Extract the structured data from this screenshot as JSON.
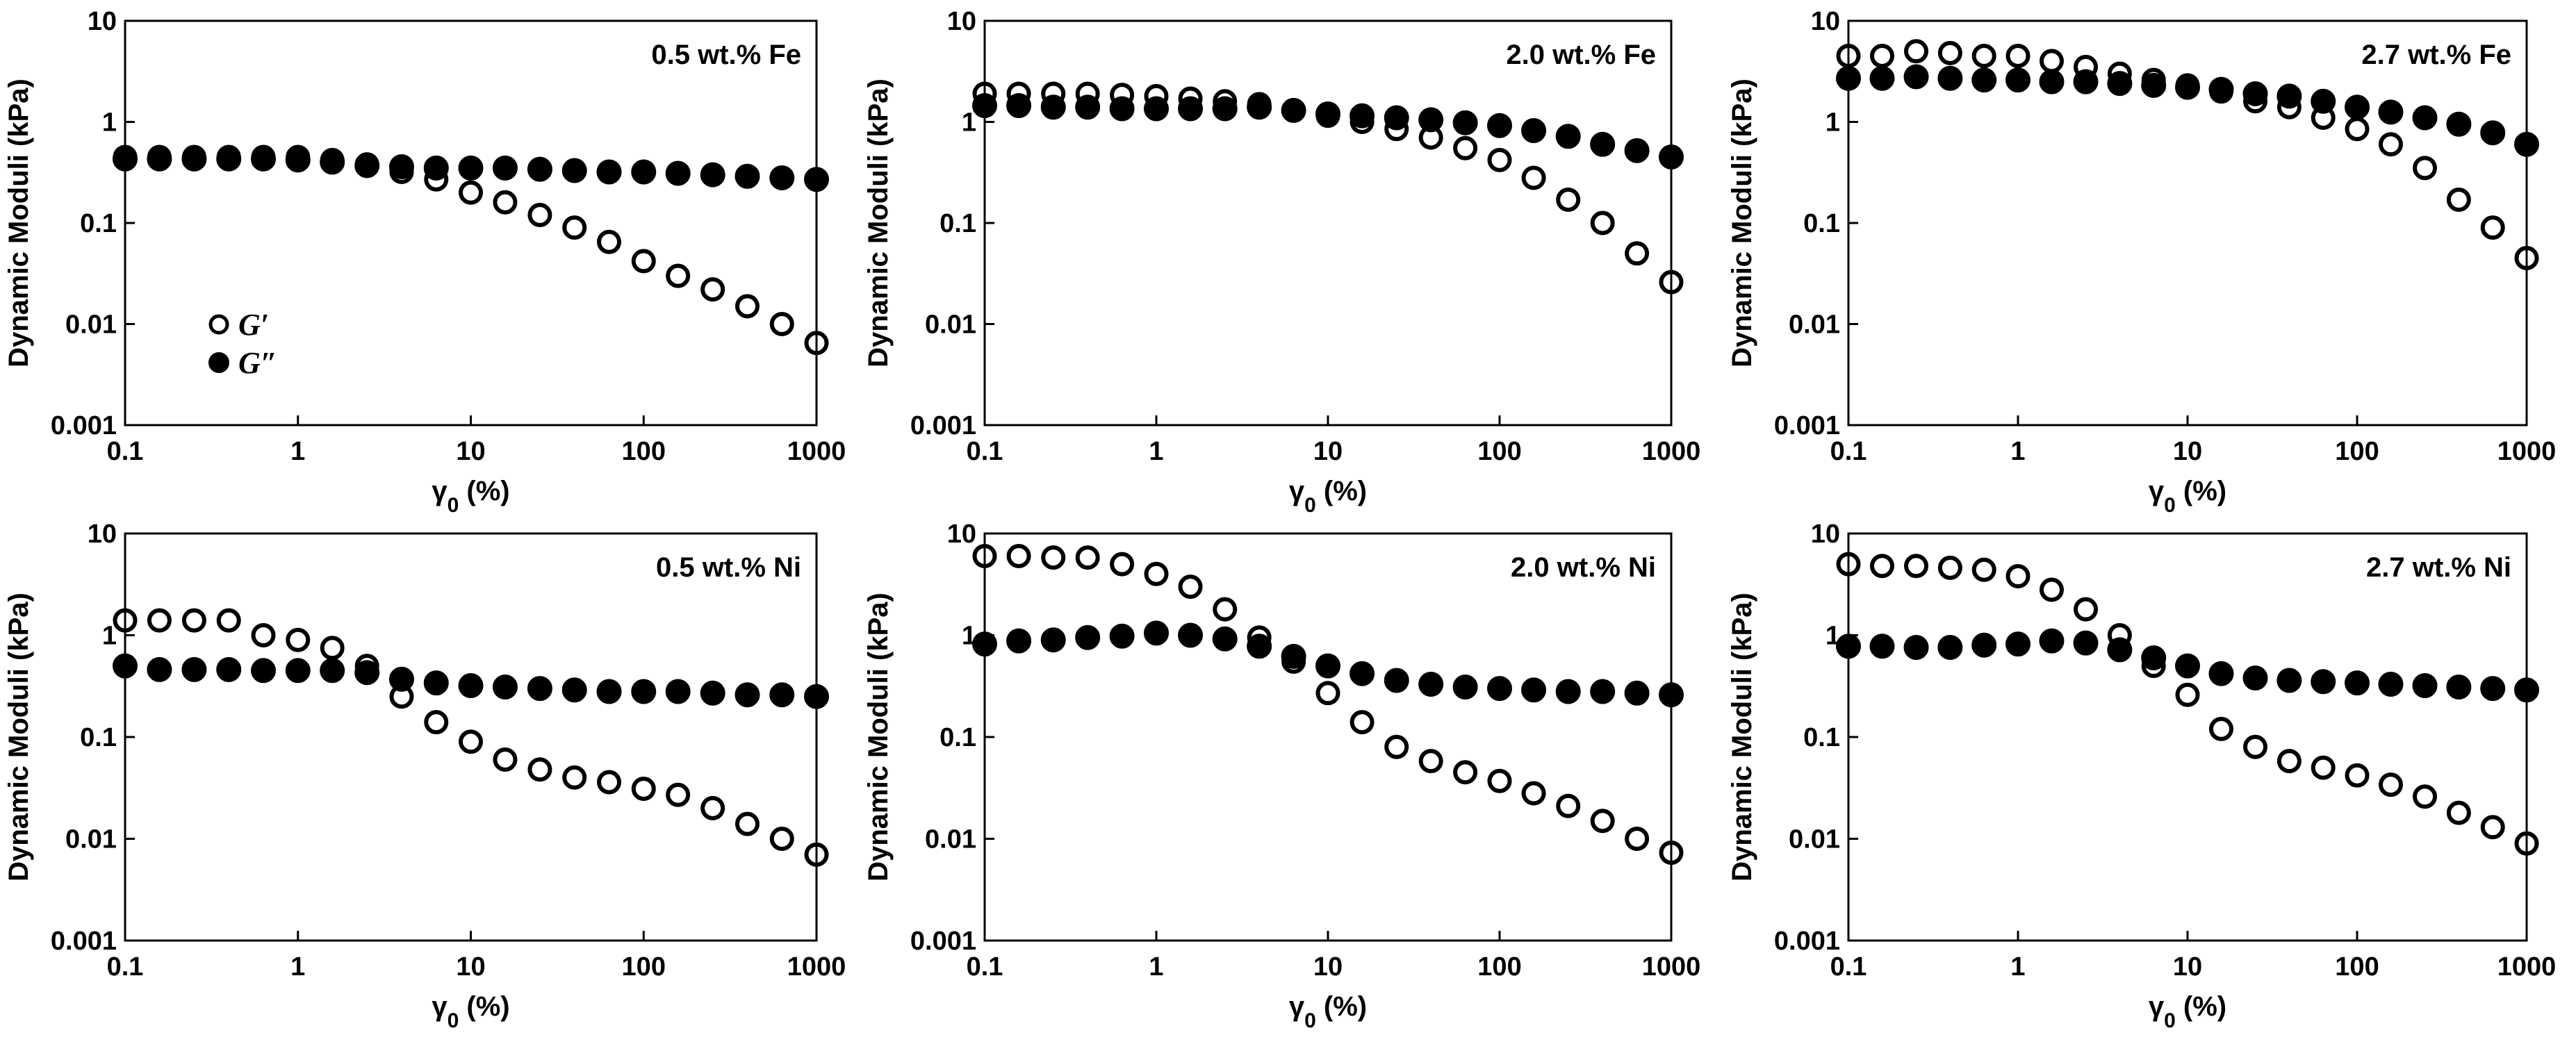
{
  "figure": {
    "x_axis_label_symbol": "γ",
    "x_axis_label_subscript": "0",
    "x_axis_label_suffix": " (%)",
    "y_axis_label": "Dynamic Moduli (kPa)",
    "legend": [
      "G′",
      "G″"
    ],
    "colors": {
      "g_prime": "#000000",
      "g_double_prime": "#000000"
    }
  },
  "chart_data": [
    {
      "type": "scatter",
      "title": "0.5 wt.% Fe",
      "x_scale": "log",
      "y_scale": "log",
      "xlim": [
        0.1,
        1000
      ],
      "ylim": [
        0.001,
        10
      ],
      "x_ticks": [
        "0.1",
        "1",
        "10",
        "100",
        "1000"
      ],
      "y_ticks": [
        "0.001",
        "0.01",
        "0.1",
        "1",
        "10"
      ],
      "xlabel": "γ0 (%)",
      "ylabel": "Dynamic Moduli (kPa)",
      "legend_position": "left-lower",
      "x": [
        0.1,
        0.158,
        0.251,
        0.398,
        0.631,
        1,
        1.58,
        2.51,
        3.98,
        6.31,
        10,
        15.8,
        25.1,
        39.8,
        63.1,
        100,
        158,
        251,
        398,
        631,
        1000
      ],
      "series": [
        {
          "name": "G′",
          "marker": "open-circle",
          "values": [
            0.45,
            0.45,
            0.45,
            0.45,
            0.45,
            0.45,
            0.42,
            0.38,
            0.32,
            0.27,
            0.2,
            0.16,
            0.12,
            0.09,
            0.065,
            0.042,
            0.03,
            0.022,
            0.015,
            0.01,
            0.0065
          ]
        },
        {
          "name": "G″",
          "marker": "filled-circle",
          "values": [
            0.43,
            0.43,
            0.43,
            0.43,
            0.43,
            0.42,
            0.4,
            0.37,
            0.36,
            0.35,
            0.35,
            0.35,
            0.34,
            0.33,
            0.32,
            0.32,
            0.31,
            0.3,
            0.29,
            0.28,
            0.27
          ]
        }
      ]
    },
    {
      "type": "scatter",
      "title": "2.0 wt.% Fe",
      "x_scale": "log",
      "y_scale": "log",
      "xlim": [
        0.1,
        1000
      ],
      "ylim": [
        0.001,
        10
      ],
      "x_ticks": [
        "0.1",
        "1",
        "10",
        "100",
        "1000"
      ],
      "y_ticks": [
        "0.001",
        "0.01",
        "0.1",
        "1",
        "10"
      ],
      "xlabel": "γ0 (%)",
      "ylabel": "Dynamic Moduli (kPa)",
      "x": [
        0.1,
        0.158,
        0.251,
        0.398,
        0.631,
        1,
        1.58,
        2.51,
        3.98,
        6.31,
        10,
        15.8,
        25.1,
        39.8,
        63.1,
        100,
        158,
        251,
        398,
        631,
        1000
      ],
      "series": [
        {
          "name": "G′",
          "marker": "open-circle",
          "values": [
            1.9,
            1.9,
            1.9,
            1.9,
            1.85,
            1.8,
            1.7,
            1.6,
            1.5,
            1.3,
            1.15,
            1.0,
            0.85,
            0.7,
            0.55,
            0.42,
            0.28,
            0.17,
            0.1,
            0.05,
            0.026
          ]
        },
        {
          "name": "G″",
          "marker": "filled-circle",
          "values": [
            1.45,
            1.45,
            1.4,
            1.4,
            1.35,
            1.35,
            1.35,
            1.35,
            1.4,
            1.3,
            1.2,
            1.15,
            1.1,
            1.05,
            0.98,
            0.92,
            0.82,
            0.72,
            0.6,
            0.52,
            0.45
          ]
        }
      ]
    },
    {
      "type": "scatter",
      "title": "2.7 wt.% Fe",
      "x_scale": "log",
      "y_scale": "log",
      "xlim": [
        0.1,
        1000
      ],
      "ylim": [
        0.001,
        10
      ],
      "x_ticks": [
        "0.1",
        "1",
        "10",
        "100",
        "1000"
      ],
      "y_ticks": [
        "0.001",
        "0.01",
        "0.1",
        "1",
        "10"
      ],
      "xlabel": "γ0 (%)",
      "ylabel": "Dynamic Moduli (kPa)",
      "x": [
        0.1,
        0.158,
        0.251,
        0.398,
        0.631,
        1,
        1.58,
        2.51,
        3.98,
        6.31,
        10,
        15.8,
        25.1,
        39.8,
        63.1,
        100,
        158,
        251,
        398,
        631,
        1000
      ],
      "series": [
        {
          "name": "G′",
          "marker": "open-circle",
          "values": [
            4.5,
            4.5,
            5.0,
            4.8,
            4.5,
            4.5,
            4.0,
            3.5,
            3.0,
            2.6,
            2.3,
            2.0,
            1.6,
            1.4,
            1.1,
            0.85,
            0.6,
            0.35,
            0.17,
            0.09,
            0.045
          ]
        },
        {
          "name": "G″",
          "marker": "filled-circle",
          "values": [
            2.7,
            2.7,
            2.8,
            2.7,
            2.6,
            2.6,
            2.5,
            2.5,
            2.4,
            2.3,
            2.2,
            2.1,
            1.9,
            1.8,
            1.6,
            1.4,
            1.25,
            1.1,
            0.95,
            0.78,
            0.6
          ]
        }
      ]
    },
    {
      "type": "scatter",
      "title": "0.5 wt.%  Ni",
      "x_scale": "log",
      "y_scale": "log",
      "xlim": [
        0.1,
        1000
      ],
      "ylim": [
        0.001,
        10
      ],
      "x_ticks": [
        "0.1",
        "1",
        "10",
        "100",
        "1000"
      ],
      "y_ticks": [
        "0.001",
        "0.01",
        "0.1",
        "1",
        "10"
      ],
      "xlabel": "γ0 (%)",
      "ylabel": "Dynamic Moduli (kPa)",
      "x": [
        0.1,
        0.158,
        0.251,
        0.398,
        0.631,
        1,
        1.58,
        2.51,
        3.98,
        6.31,
        10,
        15.8,
        25.1,
        39.8,
        63.1,
        100,
        158,
        251,
        398,
        631,
        1000
      ],
      "series": [
        {
          "name": "G′",
          "marker": "open-circle",
          "values": [
            1.4,
            1.4,
            1.4,
            1.4,
            1.0,
            0.9,
            0.75,
            0.5,
            0.25,
            0.14,
            0.09,
            0.06,
            0.048,
            0.04,
            0.036,
            0.031,
            0.027,
            0.02,
            0.014,
            0.01,
            0.007
          ]
        },
        {
          "name": "G″",
          "marker": "filled-circle",
          "values": [
            0.5,
            0.46,
            0.46,
            0.46,
            0.45,
            0.45,
            0.45,
            0.43,
            0.37,
            0.34,
            0.32,
            0.31,
            0.3,
            0.29,
            0.28,
            0.28,
            0.28,
            0.27,
            0.26,
            0.26,
            0.25
          ]
        }
      ]
    },
    {
      "type": "scatter",
      "title": "2.0 wt.%  Ni",
      "x_scale": "log",
      "y_scale": "log",
      "xlim": [
        0.1,
        1000
      ],
      "ylim": [
        0.001,
        10
      ],
      "x_ticks": [
        "0.1",
        "1",
        "10",
        "100",
        "1000"
      ],
      "y_ticks": [
        "0.001",
        "0.01",
        "0.1",
        "1",
        "10"
      ],
      "xlabel": "γ0 (%)",
      "ylabel": "Dynamic Moduli (kPa)",
      "x": [
        0.1,
        0.158,
        0.251,
        0.398,
        0.631,
        1,
        1.58,
        2.51,
        3.98,
        6.31,
        10,
        15.8,
        25.1,
        39.8,
        63.1,
        100,
        158,
        251,
        398,
        631,
        1000
      ],
      "series": [
        {
          "name": "G′",
          "marker": "open-circle",
          "values": [
            6.0,
            6.0,
            5.8,
            5.8,
            5.0,
            4.0,
            3.0,
            1.8,
            0.95,
            0.55,
            0.27,
            0.14,
            0.08,
            0.058,
            0.045,
            0.037,
            0.028,
            0.021,
            0.015,
            0.01,
            0.0073
          ]
        },
        {
          "name": "G″",
          "marker": "filled-circle",
          "values": [
            0.82,
            0.88,
            0.9,
            0.95,
            0.98,
            1.05,
            1.0,
            0.92,
            0.78,
            0.62,
            0.5,
            0.42,
            0.36,
            0.33,
            0.31,
            0.3,
            0.29,
            0.28,
            0.28,
            0.27,
            0.26
          ]
        }
      ]
    },
    {
      "type": "scatter",
      "title": "2.7 wt.%  Ni",
      "x_scale": "log",
      "y_scale": "log",
      "xlim": [
        0.1,
        1000
      ],
      "ylim": [
        0.001,
        10
      ],
      "x_ticks": [
        "0.1",
        "1",
        "10",
        "100",
        "1000"
      ],
      "y_ticks": [
        "0.001",
        "0.01",
        "0.1",
        "1",
        "10"
      ],
      "xlabel": "γ0 (%)",
      "ylabel": "Dynamic Moduli (kPa)",
      "x": [
        0.1,
        0.158,
        0.251,
        0.398,
        0.631,
        1,
        1.58,
        2.51,
        3.98,
        6.31,
        10,
        15.8,
        25.1,
        39.8,
        63.1,
        100,
        158,
        251,
        398,
        631,
        1000
      ],
      "series": [
        {
          "name": "G′",
          "marker": "open-circle",
          "values": [
            5.0,
            4.8,
            4.8,
            4.6,
            4.4,
            3.8,
            2.8,
            1.8,
            1.0,
            0.5,
            0.26,
            0.12,
            0.08,
            0.058,
            0.05,
            0.042,
            0.034,
            0.026,
            0.018,
            0.013,
            0.009
          ]
        },
        {
          "name": "G″",
          "marker": "filled-circle",
          "values": [
            0.78,
            0.78,
            0.76,
            0.76,
            0.8,
            0.82,
            0.88,
            0.84,
            0.72,
            0.6,
            0.5,
            0.42,
            0.38,
            0.36,
            0.35,
            0.34,
            0.33,
            0.32,
            0.31,
            0.3,
            0.29
          ]
        }
      ]
    }
  ]
}
